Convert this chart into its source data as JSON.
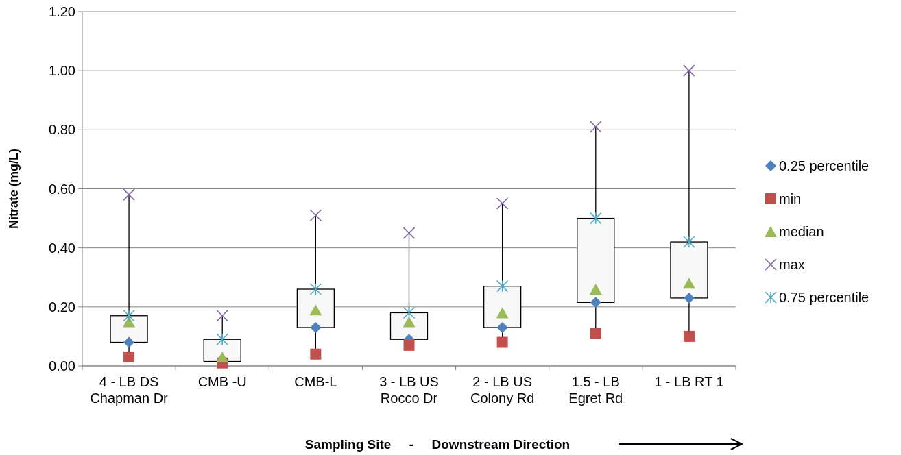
{
  "chart_data": {
    "type": "box",
    "xlabel": "Sampling Site     -     Downstream Direction",
    "ylabel": "Nitrate (mg/L)",
    "categories": [
      "4 - LB DS\nChapman Dr",
      "CMB -U",
      "CMB-L",
      "3 - LB US\nRocco Dr",
      "2 - LB US\nColony Rd",
      "1.5 - LB\nEgret Rd",
      "1 - LB RT 1"
    ],
    "boxes": [
      {
        "low": 0.03,
        "q1": 0.08,
        "q3": 0.17,
        "high": 0.58
      },
      {
        "low": 0.01,
        "q1": 0.015,
        "q3": 0.09,
        "high": 0.17
      },
      {
        "low": 0.04,
        "q1": 0.13,
        "q3": 0.26,
        "high": 0.51
      },
      {
        "low": 0.07,
        "q1": 0.09,
        "q3": 0.18,
        "high": 0.45
      },
      {
        "low": 0.08,
        "q1": 0.13,
        "q3": 0.27,
        "high": 0.55
      },
      {
        "low": 0.11,
        "q1": 0.215,
        "q3": 0.5,
        "high": 0.81
      },
      {
        "low": 0.1,
        "q1": 0.23,
        "q3": 0.42,
        "high": 1.0
      }
    ],
    "series": [
      {
        "name": "0.25 percentile",
        "type": "scatter",
        "marker": "diamond",
        "color": "#4f81bd",
        "values": [
          0.08,
          null,
          0.13,
          0.09,
          0.13,
          0.215,
          0.23
        ]
      },
      {
        "name": "min",
        "type": "scatter",
        "marker": "square",
        "color": "#c0504d",
        "values": [
          0.03,
          0.01,
          0.04,
          0.07,
          0.08,
          0.11,
          0.1
        ]
      },
      {
        "name": "median",
        "type": "scatter",
        "marker": "triangle",
        "color": "#9bbb59",
        "values": [
          0.15,
          0.03,
          0.19,
          0.15,
          0.18,
          0.26,
          0.28
        ]
      },
      {
        "name": "max",
        "type": "scatter",
        "marker": "cross",
        "color": "#8064a2",
        "values": [
          0.58,
          0.17,
          0.51,
          0.45,
          0.55,
          0.81,
          1.0
        ]
      },
      {
        "name": "0.75 percentile",
        "type": "scatter",
        "color": "#4bacc6",
        "values": [
          0.17,
          0.09,
          0.26,
          0.18,
          0.27,
          0.5,
          0.42
        ]
      }
    ],
    "ylim": [
      0,
      1.2
    ],
    "yticks": [
      {
        "value": 0,
        "label": "0.00"
      },
      {
        "value": 0.2,
        "label": "0.20"
      },
      {
        "value": 0.4,
        "label": "0.40"
      },
      {
        "value": 0.6,
        "label": "0.60"
      },
      {
        "value": 0.8,
        "label": "0.80"
      },
      {
        "value": 1.0,
        "label": "1.00"
      },
      {
        "value": 1.2,
        "label": "1.20"
      }
    ],
    "grid": "y",
    "legend": "right"
  }
}
